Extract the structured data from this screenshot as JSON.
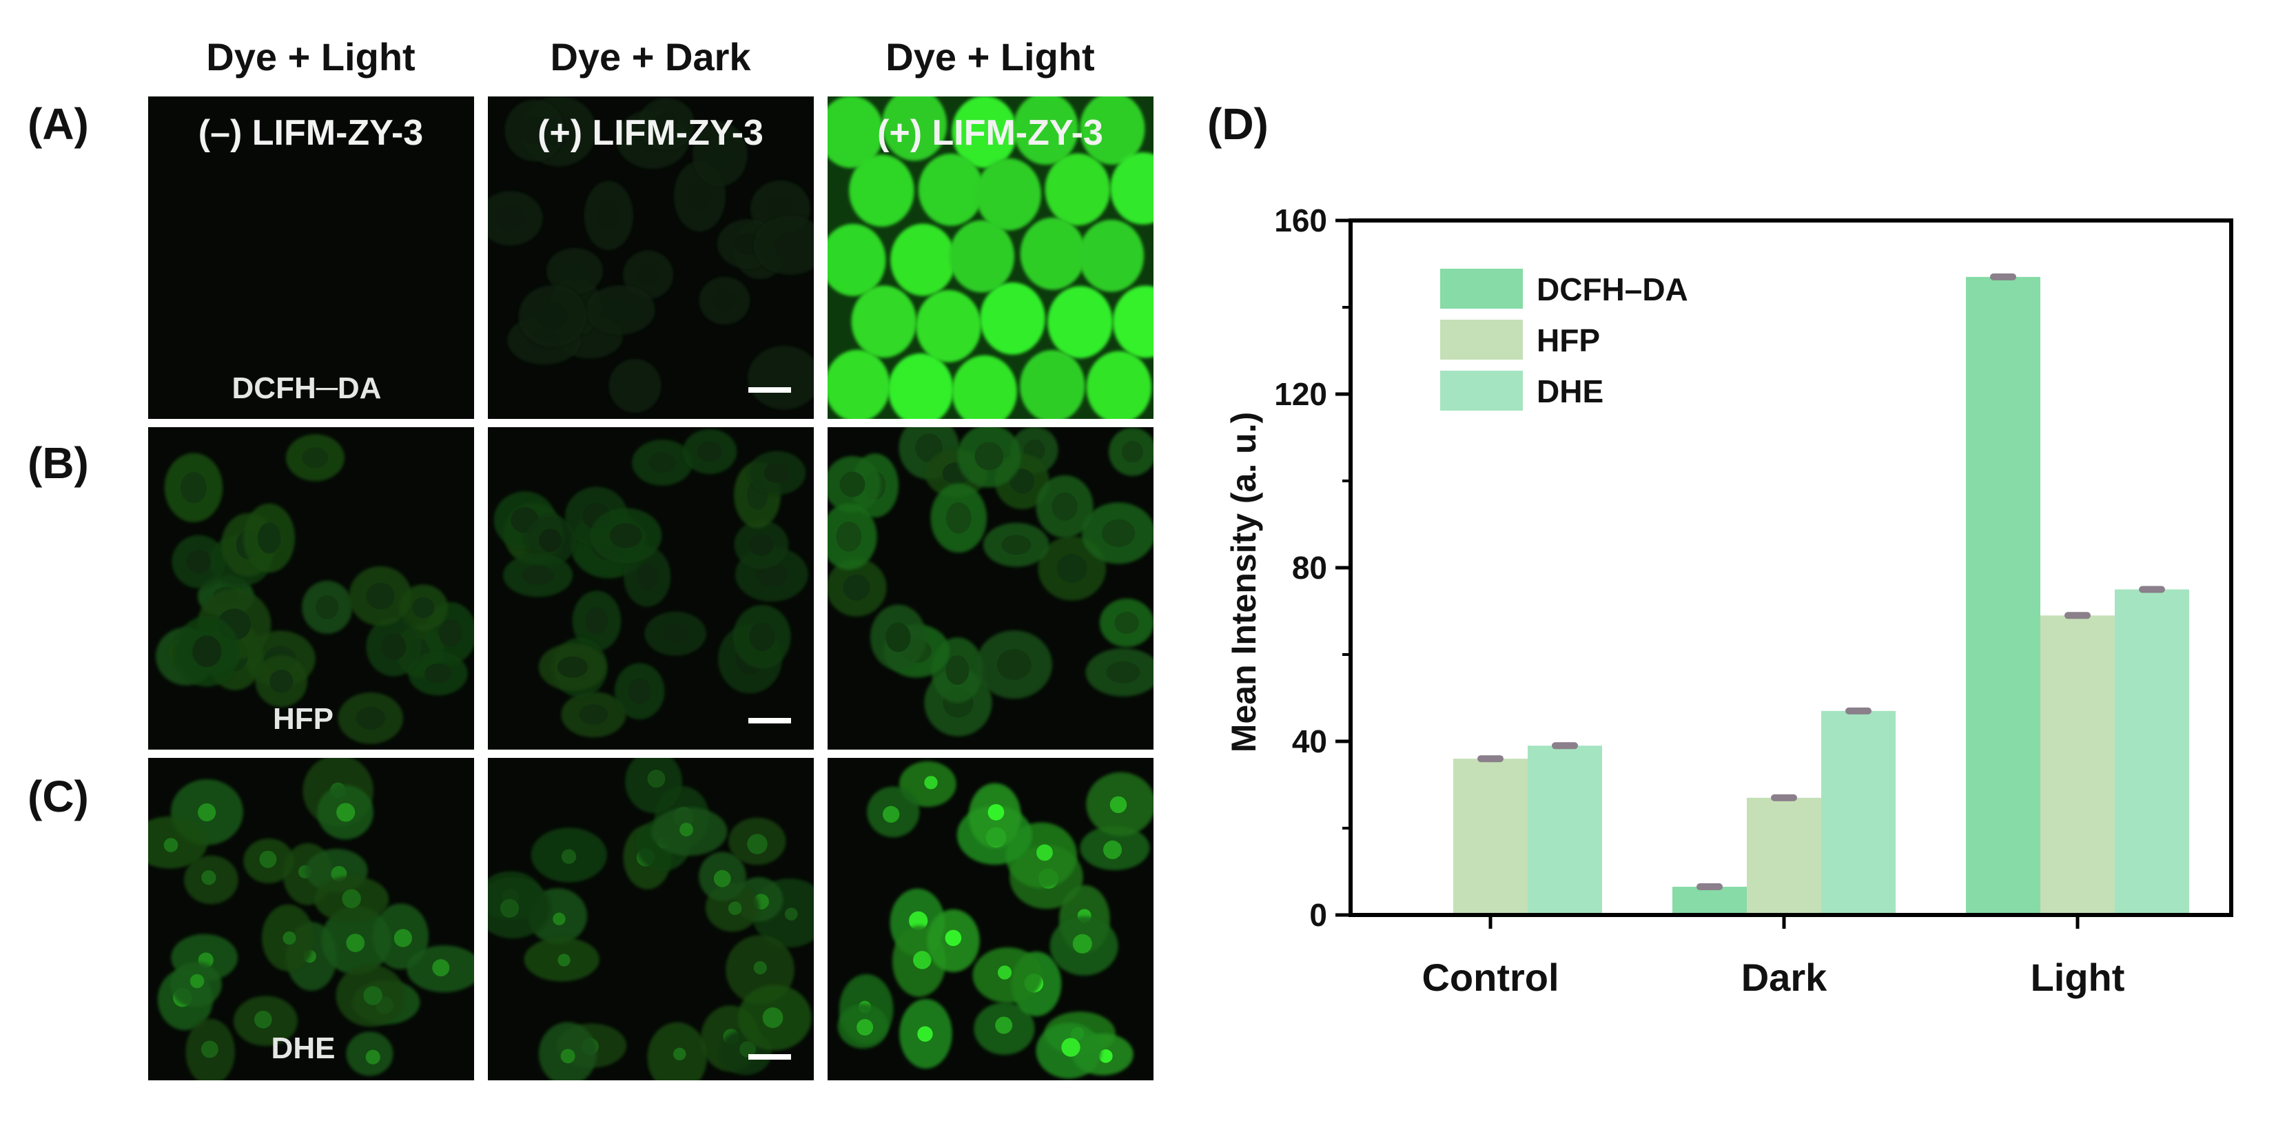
{
  "figure": {
    "panel_labels": [
      "(A)",
      "(B)",
      "(C)",
      "(D)"
    ],
    "column_headers": [
      "Dye + Light",
      "Dye + Dark",
      "Dye + Light"
    ],
    "column_titles": [
      "(–) LIFM-ZY-3",
      "(+) LIFM-ZY-3",
      "(+) LIFM-ZY-3"
    ],
    "row_dyes": [
      "DCFH─DA",
      "HFP",
      "DHE"
    ],
    "micrographs": [
      {
        "row": 0,
        "col": 0,
        "brightness": 0.0
      },
      {
        "row": 0,
        "col": 1,
        "brightness": 0.05
      },
      {
        "row": 0,
        "col": 2,
        "brightness": 1.0
      },
      {
        "row": 1,
        "col": 0,
        "brightness": 0.25
      },
      {
        "row": 1,
        "col": 1,
        "brightness": 0.2
      },
      {
        "row": 1,
        "col": 2,
        "brightness": 0.35
      },
      {
        "row": 2,
        "col": 0,
        "brightness": 0.3
      },
      {
        "row": 2,
        "col": 1,
        "brightness": 0.25
      },
      {
        "row": 2,
        "col": 2,
        "brightness": 0.55
      }
    ],
    "colors": {
      "fluorescence": "#29c529",
      "dark_bg": "#050805",
      "scale_bar": "#ffffff"
    }
  },
  "chart_data": {
    "type": "bar",
    "categories": [
      "Control",
      "Dark",
      "Light"
    ],
    "series": [
      {
        "name": "DCFH–DA",
        "values": [
          0,
          6.5,
          147
        ],
        "errors": [
          0,
          0.6,
          0.6
        ],
        "color": "#86dba6"
      },
      {
        "name": "HFP",
        "values": [
          36,
          27,
          69
        ],
        "errors": [
          0.6,
          0.6,
          0.6
        ],
        "color": "#c5e0b6"
      },
      {
        "name": "DHE",
        "values": [
          39,
          47,
          75
        ],
        "errors": [
          0.6,
          0.6,
          0.6
        ],
        "color": "#a5e4c0"
      }
    ],
    "xlabel": "",
    "ylabel": "Mean Intensity (a. u.)",
    "ylim": [
      0,
      160
    ],
    "yticks": [
      0,
      40,
      80,
      120,
      160
    ],
    "legend": "top-left",
    "grid": false,
    "error_bar_color": "#8a7f8a"
  }
}
